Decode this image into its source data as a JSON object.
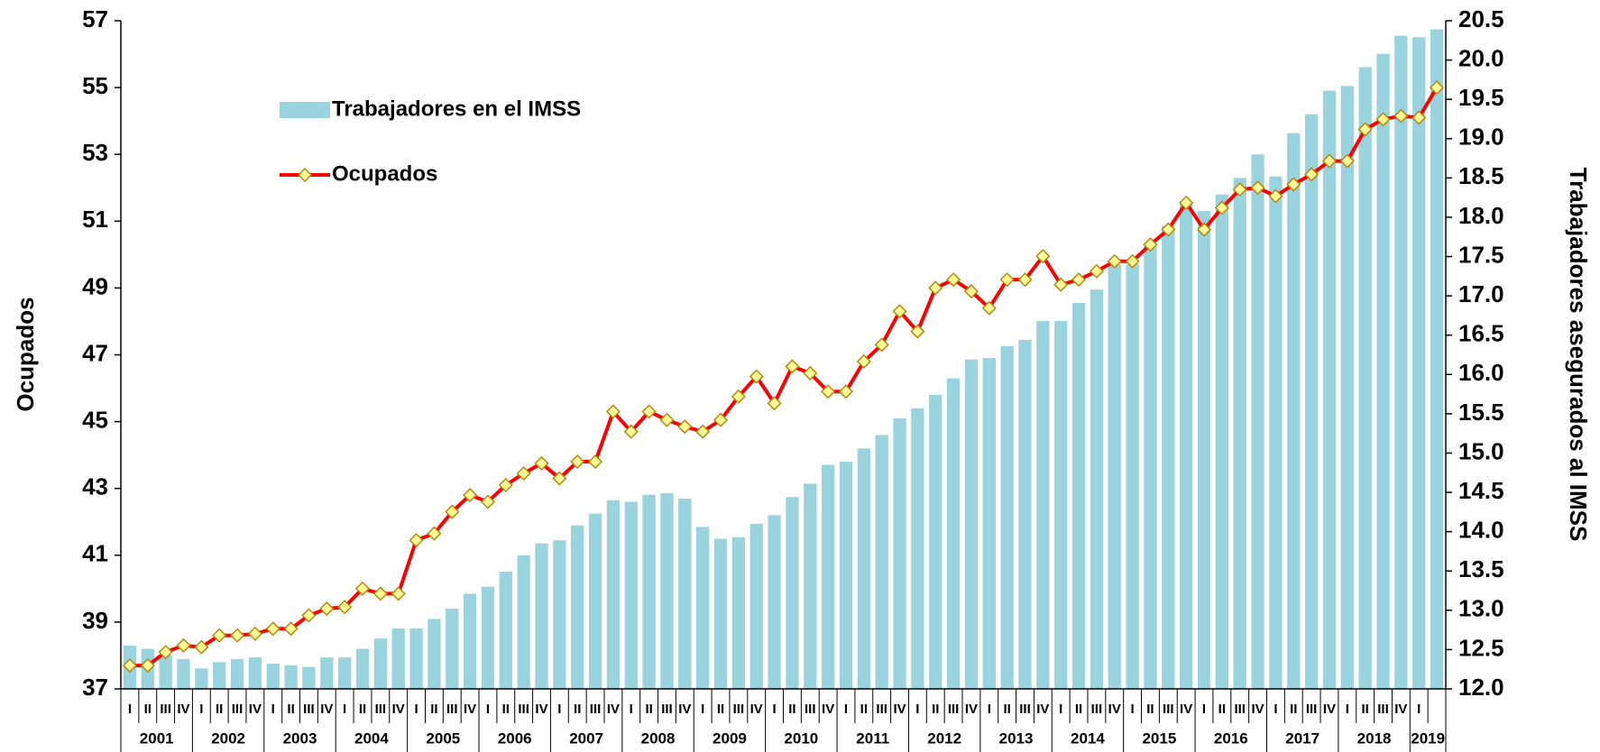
{
  "chart_data": {
    "type": "bar_line",
    "categories": [
      "I",
      "II",
      "III",
      "IV",
      "I",
      "II",
      "III",
      "IV",
      "I",
      "II",
      "III",
      "IV",
      "I",
      "II",
      "III",
      "IV",
      "I",
      "II",
      "III",
      "IV",
      "I",
      "II",
      "III",
      "IV",
      "I",
      "II",
      "III",
      "IV",
      "I",
      "II",
      "III",
      "IV",
      "I",
      "II",
      "III",
      "IV",
      "I",
      "II",
      "III",
      "IV",
      "I",
      "II",
      "III",
      "IV",
      "I",
      "II",
      "III",
      "IV",
      "I",
      "II",
      "III",
      "IV",
      "I",
      "II",
      "III",
      "IV",
      "I",
      "II",
      "III",
      "IV",
      "I",
      "II",
      "III",
      "IV",
      "I",
      "II",
      "III",
      "IV",
      "I",
      "II",
      "III",
      "IV",
      "I",
      null
    ],
    "years": [
      "2001",
      "2002",
      "2003",
      "2004",
      "2005",
      "2006",
      "2007",
      "2008",
      "2009",
      "2010",
      "2011",
      "2012",
      "2013",
      "2014",
      "2015",
      "2016",
      "2017",
      "2018",
      "2019"
    ],
    "ylabel": "Ocupados",
    "y2label": "Trabajadores asegurados al IMSS",
    "ylim": [
      37,
      57
    ],
    "yticks": [
      37,
      39,
      41,
      43,
      45,
      47,
      49,
      51,
      53,
      55,
      57
    ],
    "y2lim": [
      12,
      20.5
    ],
    "y2ticks": [
      {
        "value": 12,
        "label": "12.0"
      },
      12.5,
      {
        "value": 13,
        "label": "13.0"
      },
      13.5,
      {
        "value": 14,
        "label": "14.0"
      },
      14.5,
      {
        "value": 15,
        "label": "15.0"
      },
      15.5,
      {
        "value": 16,
        "label": "16.0"
      },
      16.5,
      {
        "value": 17,
        "label": "17.0"
      },
      17.5,
      {
        "value": 18,
        "label": "18.0"
      },
      18.5,
      {
        "value": 19,
        "label": "19.0"
      },
      19.5,
      {
        "value": 20,
        "label": "20.0"
      },
      20.5
    ],
    "series": [
      {
        "name": "Trabajadores en el IMSS",
        "type": "bar",
        "axis": "y2",
        "color": "#99d3dd",
        "values": [
          12.55,
          12.51,
          12.43,
          12.38,
          12.26,
          12.34,
          12.38,
          12.4,
          12.32,
          12.3,
          12.28,
          12.4,
          12.4,
          12.51,
          12.64,
          12.77,
          12.77,
          12.89,
          13.02,
          13.21,
          13.3,
          13.49,
          13.7,
          13.85,
          13.89,
          14.08,
          14.23,
          14.4,
          14.38,
          14.47,
          14.49,
          14.42,
          14.06,
          13.91,
          13.93,
          14.1,
          14.21,
          14.44,
          14.61,
          14.85,
          14.89,
          15.06,
          15.23,
          15.44,
          15.57,
          15.74,
          15.95,
          16.19,
          16.21,
          16.36,
          16.44,
          16.68,
          16.68,
          16.91,
          17.08,
          17.4,
          17.4,
          17.65,
          17.89,
          18.18,
          18.08,
          18.29,
          18.5,
          18.8,
          18.52,
          19.07,
          19.31,
          19.61,
          19.67,
          19.91,
          20.08,
          20.31,
          20.29,
          20.39
        ]
      },
      {
        "name": "Ocupados",
        "type": "line",
        "axis": "y",
        "color": "#ff0000",
        "marker_color": "#ffff99",
        "values": [
          37.7,
          37.7,
          38.1,
          38.3,
          38.25,
          38.6,
          38.6,
          38.65,
          38.8,
          38.8,
          39.2,
          39.4,
          39.45,
          40.0,
          39.85,
          39.85,
          41.45,
          41.65,
          42.3,
          42.8,
          42.6,
          43.1,
          43.45,
          43.75,
          43.3,
          43.8,
          43.8,
          45.3,
          44.7,
          45.3,
          45.05,
          44.85,
          44.7,
          45.05,
          45.75,
          46.35,
          45.55,
          46.65,
          46.45,
          45.9,
          45.9,
          46.8,
          47.3,
          48.3,
          47.7,
          49.0,
          49.25,
          48.9,
          48.4,
          49.25,
          49.25,
          49.95,
          49.1,
          49.25,
          49.5,
          49.8,
          49.8,
          50.3,
          50.75,
          51.55,
          50.75,
          51.4,
          51.95,
          52.0,
          51.75,
          52.1,
          52.4,
          52.8,
          52.8,
          53.75,
          54.05,
          54.15,
          54.1,
          55.0
        ]
      }
    ]
  }
}
